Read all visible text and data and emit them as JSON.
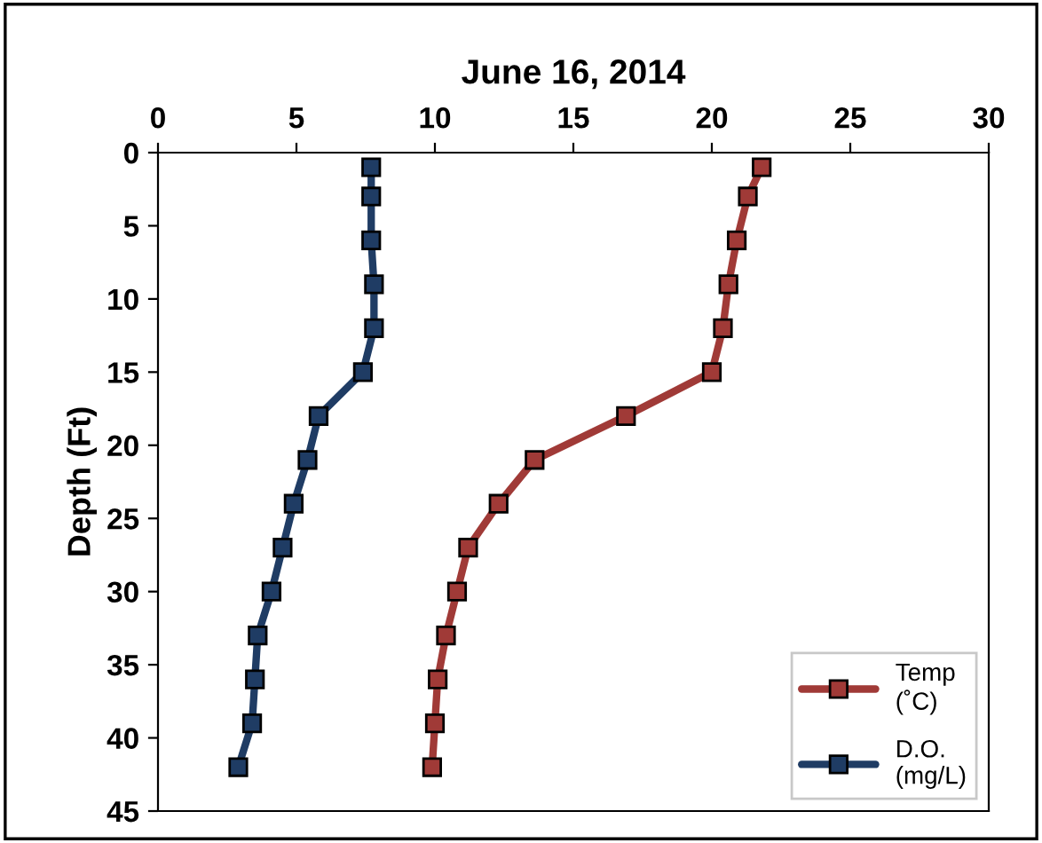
{
  "chart_data": {
    "type": "line",
    "title": "June 16, 2014",
    "ylabel": "Depth (Ft)",
    "xlim": [
      0,
      30
    ],
    "xticks": [
      0,
      5,
      10,
      15,
      20,
      25,
      30
    ],
    "ylim": [
      45,
      0
    ],
    "yticks": [
      0,
      5,
      10,
      15,
      20,
      25,
      30,
      35,
      40,
      45
    ],
    "grid": false,
    "legend": "bottom right",
    "marker": "square",
    "line_style": "solid",
    "series": [
      {
        "name": "Temp\n(˚C)",
        "color": "#a03a37",
        "x": [
          21.8,
          21.3,
          20.9,
          20.6,
          20.4,
          20.0,
          16.9,
          13.6,
          12.3,
          11.2,
          10.8,
          10.4,
          10.1,
          10.0,
          9.9
        ],
        "values": [
          1,
          3,
          6,
          9,
          12,
          15,
          18,
          21,
          24,
          27,
          30,
          33,
          36,
          39,
          42
        ]
      },
      {
        "name": "D.O.\n(mg/L)",
        "color": "#1f3c64",
        "x": [
          7.7,
          7.7,
          7.7,
          7.8,
          7.8,
          7.4,
          5.8,
          5.4,
          4.9,
          4.5,
          4.1,
          3.6,
          3.5,
          3.4,
          2.9
        ],
        "values": [
          1,
          3,
          6,
          9,
          12,
          15,
          18,
          21,
          24,
          27,
          30,
          33,
          36,
          39,
          42
        ]
      }
    ]
  }
}
